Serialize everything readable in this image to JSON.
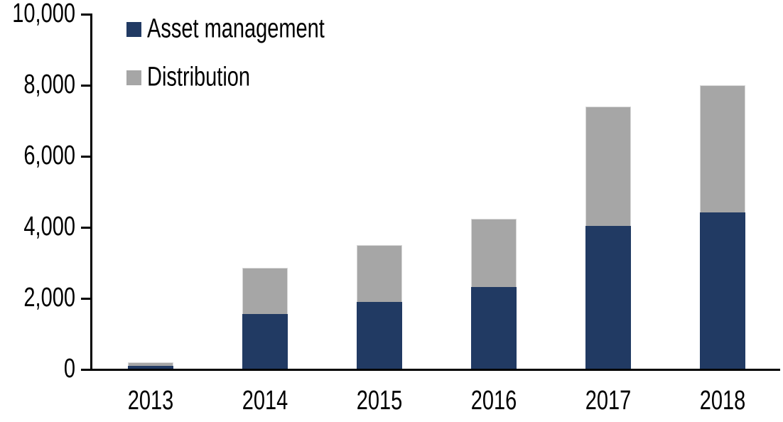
{
  "chart_data": {
    "type": "bar",
    "stacked": true,
    "title": "",
    "xlabel": "",
    "ylabel": "",
    "categories": [
      "2013",
      "2014",
      "2015",
      "2016",
      "2017",
      "2018"
    ],
    "series": [
      {
        "name": "Asset management",
        "color": "#213a63",
        "values": [
          100,
          1560,
          1900,
          2320,
          4050,
          4420
        ]
      },
      {
        "name": "Distribution",
        "color": "#a6a6a6",
        "values": [
          100,
          1300,
          1600,
          1930,
          3350,
          3580
        ]
      }
    ],
    "totals": [
      200,
      2860,
      3500,
      4250,
      7400,
      8000
    ],
    "ylim": [
      0,
      10000
    ],
    "yticks": [
      {
        "value": 0,
        "label": "0"
      },
      {
        "value": 2000,
        "label": "2,000"
      },
      {
        "value": 4000,
        "label": "4,000"
      },
      {
        "value": 6000,
        "label": "6,000"
      },
      {
        "value": 8000,
        "label": "8,000"
      },
      {
        "value": 10000,
        "label": "10,000"
      }
    ],
    "grid": false,
    "legend_position": "top-left",
    "axis_color": "#000000",
    "background_color": "#ffffff"
  }
}
